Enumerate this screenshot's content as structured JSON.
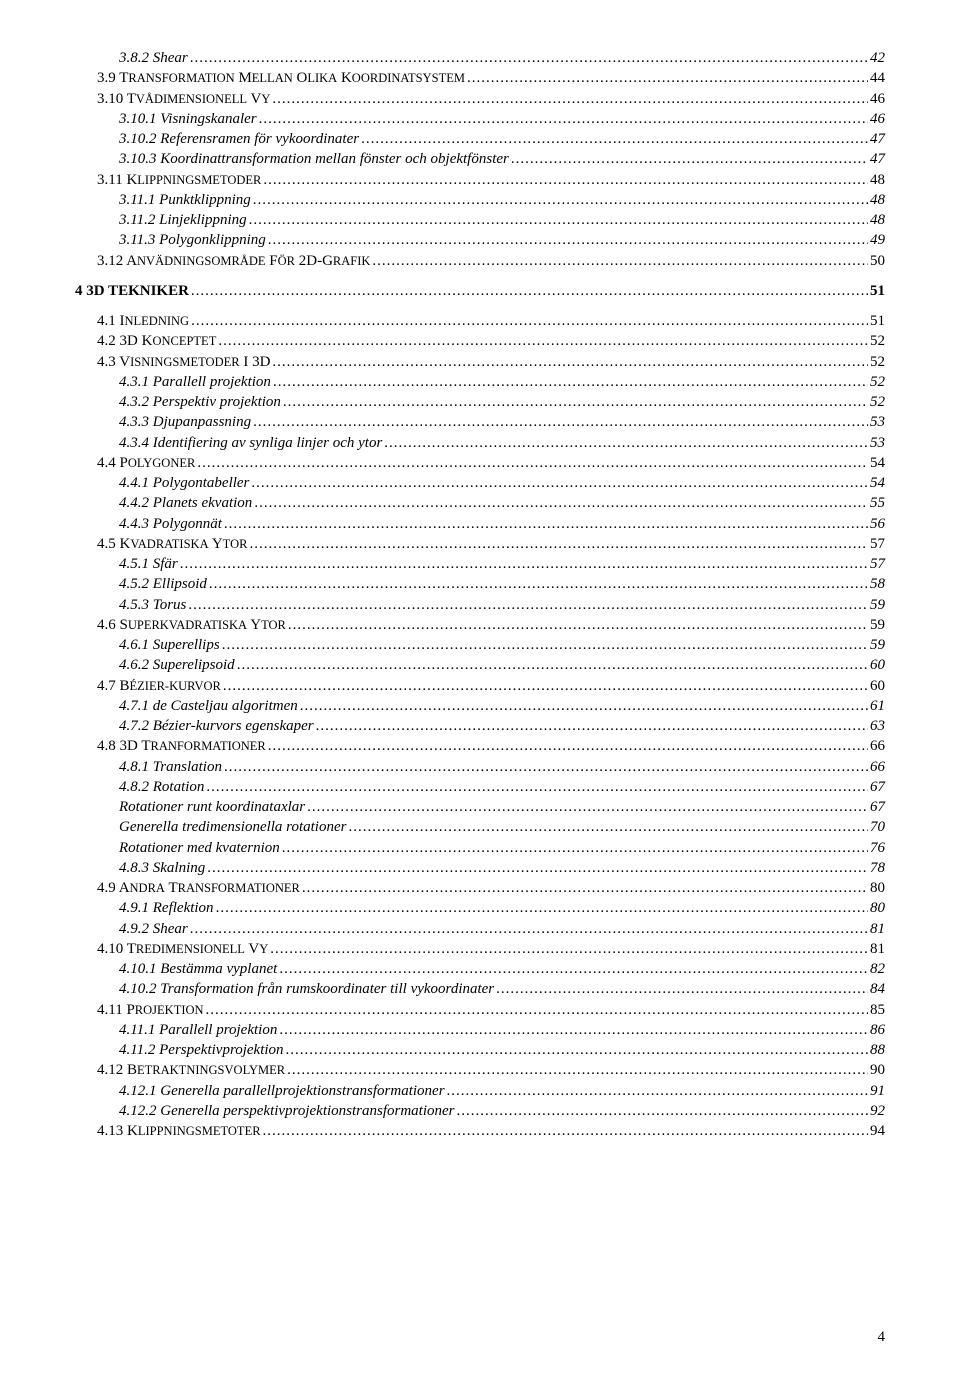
{
  "pageNumber": "4",
  "toc": [
    {
      "indent": 2,
      "style": "italic",
      "text": "3.8.2 Shear",
      "page": "42"
    },
    {
      "indent": 1,
      "style": "plain",
      "numPrefix": "3.9 ",
      "smallcaps": "TRANSFORMATION MELLAN OLIKA KOORDINATSYSTEM",
      "page": "44"
    },
    {
      "indent": 1,
      "style": "plain",
      "numPrefix": "3.10 ",
      "smallcaps": "TVÅDIMENSIONELL VY",
      "page": "46"
    },
    {
      "indent": 2,
      "style": "italic",
      "text": "3.10.1 Visningskanaler",
      "page": "46"
    },
    {
      "indent": 2,
      "style": "italic",
      "text": "3.10.2 Referensramen för vykoordinater",
      "page": "47"
    },
    {
      "indent": 2,
      "style": "italic",
      "text": "3.10.3 Koordinattransformation mellan fönster och objektfönster",
      "page": "47"
    },
    {
      "indent": 1,
      "style": "plain",
      "numPrefix": "3.11 ",
      "smallcaps": "KLIPPNINGSMETODER",
      "page": "48"
    },
    {
      "indent": 2,
      "style": "italic",
      "text": "3.11.1 Punktklippning",
      "page": "48"
    },
    {
      "indent": 2,
      "style": "italic",
      "text": "3.11.2 Linjeklippning",
      "page": "48"
    },
    {
      "indent": 2,
      "style": "italic",
      "text": "3.11.3 Polygonklippning",
      "page": "49"
    },
    {
      "indent": 1,
      "style": "plain",
      "numPrefix": "3.12 ",
      "smallcaps": "ANVÄDNINGSOMRÅDE FÖR ",
      "tail": "2D-",
      "smallcapsTail": "GRAFIK",
      "page": "50"
    },
    {
      "indent": 0,
      "style": "bold",
      "text": "4 3D TEKNIKER",
      "page": "51"
    },
    {
      "indent": 1,
      "style": "plain",
      "numPrefix": "4.1 ",
      "smallcaps": "INLEDNING",
      "page": "51"
    },
    {
      "indent": 1,
      "style": "plain",
      "numPrefix": "4.2 3D ",
      "smallcaps": "KONCEPTET",
      "page": "52"
    },
    {
      "indent": 1,
      "style": "plain",
      "numPrefix": "4.3 ",
      "smallcaps": "VISNINGSMETODER I ",
      "tail": "3D",
      "page": "52"
    },
    {
      "indent": 2,
      "style": "italic",
      "text": "4.3.1 Parallell projektion",
      "page": "52"
    },
    {
      "indent": 2,
      "style": "italic",
      "text": "4.3.2 Perspektiv projektion",
      "page": "52"
    },
    {
      "indent": 2,
      "style": "italic",
      "text": "4.3.3 Djupanpassning",
      "page": "53"
    },
    {
      "indent": 2,
      "style": "italic",
      "text": "4.3.4 Identifiering av synliga linjer och ytor",
      "page": "53"
    },
    {
      "indent": 1,
      "style": "plain",
      "numPrefix": "4.4 ",
      "smallcaps": "POLYGONER",
      "page": "54"
    },
    {
      "indent": 2,
      "style": "italic",
      "text": "4.4.1 Polygontabeller",
      "page": "54"
    },
    {
      "indent": 2,
      "style": "italic",
      "text": "4.4.2 Planets ekvation",
      "page": "55"
    },
    {
      "indent": 2,
      "style": "italic",
      "text": "4.4.3 Polygonnät",
      "page": "56"
    },
    {
      "indent": 1,
      "style": "plain",
      "numPrefix": "4.5 ",
      "smallcaps": "KVADRATISKA YTOR",
      "page": "57"
    },
    {
      "indent": 2,
      "style": "italic",
      "text": "4.5.1 Sfär",
      "page": "57"
    },
    {
      "indent": 2,
      "style": "italic",
      "text": "4.5.2 Ellipsoid",
      "page": "58"
    },
    {
      "indent": 2,
      "style": "italic",
      "text": "4.5.3 Torus",
      "page": "59"
    },
    {
      "indent": 1,
      "style": "plain",
      "numPrefix": "4.6 ",
      "smallcaps": "SUPERKVADRATISKA YTOR",
      "page": "59"
    },
    {
      "indent": 2,
      "style": "italic",
      "text": "4.6.1 Superellips",
      "page": "59"
    },
    {
      "indent": 2,
      "style": "italic",
      "text": "4.6.2 Superelipsoid",
      "page": "60"
    },
    {
      "indent": 1,
      "style": "plain",
      "numPrefix": "4.7 ",
      "smallcaps": "BÉZIER-KURVOR",
      "page": "60"
    },
    {
      "indent": 2,
      "style": "italic",
      "text": "4.7.1 de Casteljau algoritmen",
      "page": "61"
    },
    {
      "indent": 2,
      "style": "italic",
      "text": "4.7.2 Bézier-kurvors egenskaper",
      "page": "63"
    },
    {
      "indent": 1,
      "style": "plain",
      "numPrefix": "4.8 3D ",
      "smallcaps": "TRANFORMATIONER",
      "page": "66"
    },
    {
      "indent": 2,
      "style": "italic",
      "text": "4.8.1 Translation",
      "page": "66"
    },
    {
      "indent": 2,
      "style": "italic",
      "text": "4.8.2 Rotation",
      "page": "67"
    },
    {
      "indent": 2,
      "style": "italic",
      "text": "Rotationer runt koordinataxlar",
      "page": "67"
    },
    {
      "indent": 2,
      "style": "italic",
      "text": "Generella tredimensionella rotationer",
      "page": "70"
    },
    {
      "indent": 2,
      "style": "italic",
      "text": "Rotationer med kvaternion",
      "page": "76"
    },
    {
      "indent": 2,
      "style": "italic",
      "text": "4.8.3 Skalning",
      "page": "78"
    },
    {
      "indent": 1,
      "style": "plain",
      "numPrefix": "4.9 ",
      "smallcaps": "ANDRA TRANSFORMATIONER",
      "page": "80"
    },
    {
      "indent": 2,
      "style": "italic",
      "text": "4.9.1 Reflektion",
      "page": "80"
    },
    {
      "indent": 2,
      "style": "italic",
      "text": "4.9.2 Shear",
      "page": "81"
    },
    {
      "indent": 1,
      "style": "plain",
      "numPrefix": "4.10 ",
      "smallcaps": "TREDIMENSIONELL VY",
      "page": "81"
    },
    {
      "indent": 2,
      "style": "italic",
      "text": "4.10.1 Bestämma vyplanet",
      "page": "82"
    },
    {
      "indent": 2,
      "style": "italic",
      "text": "4.10.2 Transformation från rumskoordinater till vykoordinater",
      "page": "84"
    },
    {
      "indent": 1,
      "style": "plain",
      "numPrefix": "4.11 ",
      "smallcaps": "PROJEKTION",
      "page": "85"
    },
    {
      "indent": 2,
      "style": "italic",
      "text": "4.11.1 Parallell projektion",
      "page": "86"
    },
    {
      "indent": 2,
      "style": "italic",
      "text": "4.11.2 Perspektivprojektion",
      "page": "88"
    },
    {
      "indent": 1,
      "style": "plain",
      "numPrefix": "4.12 ",
      "smallcaps": "BETRAKTNINGSVOLYMER",
      "page": "90"
    },
    {
      "indent": 2,
      "style": "italic",
      "text": "4.12.1 Generella parallellprojektionstransformationer",
      "page": "91"
    },
    {
      "indent": 2,
      "style": "italic",
      "text": "4.12.2 Generella perspektivprojektionstransformationer",
      "page": "92"
    },
    {
      "indent": 1,
      "style": "plain",
      "numPrefix": "4.13 ",
      "smallcaps": "KLIPPNINGSMETOTER",
      "page": "94"
    }
  ],
  "spacing": {
    "before_4_3D_TEKNIKER": 10,
    "after_4_3D_TEKNIKER": 10
  },
  "smallcapsSize": "12.5px",
  "mainSize": "15px",
  "colors": {
    "text": "#000000",
    "background": "#ffffff"
  }
}
